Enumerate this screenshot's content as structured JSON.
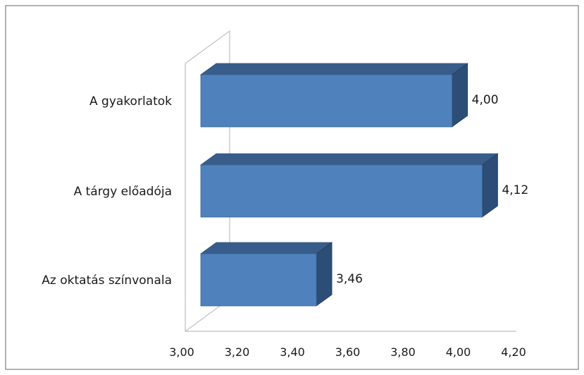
{
  "chart_data": {
    "type": "bar",
    "orientation": "horizontal",
    "style": "3d",
    "categories": [
      "A gyakorlatok",
      "A tárgy előadója",
      "Az oktatás színvonala"
    ],
    "values": [
      4.0,
      4.12,
      3.46
    ],
    "data_labels": [
      "4,00",
      "4,12",
      "3,46"
    ],
    "xlim": [
      3.0,
      4.2
    ],
    "x_ticks": [
      3.0,
      3.2,
      3.4,
      3.6,
      3.8,
      4.0,
      4.2
    ],
    "x_tick_labels": [
      "3,00",
      "3,20",
      "3,40",
      "3,60",
      "3,80",
      "4,00",
      "4,20"
    ],
    "grid": false,
    "legend": "none",
    "colors": {
      "bar_front": "#4f81bd",
      "bar_top": "#385d8a",
      "bar_side": "#2c4d75",
      "wall": "#bfbfbf",
      "frame": "#808080"
    }
  }
}
